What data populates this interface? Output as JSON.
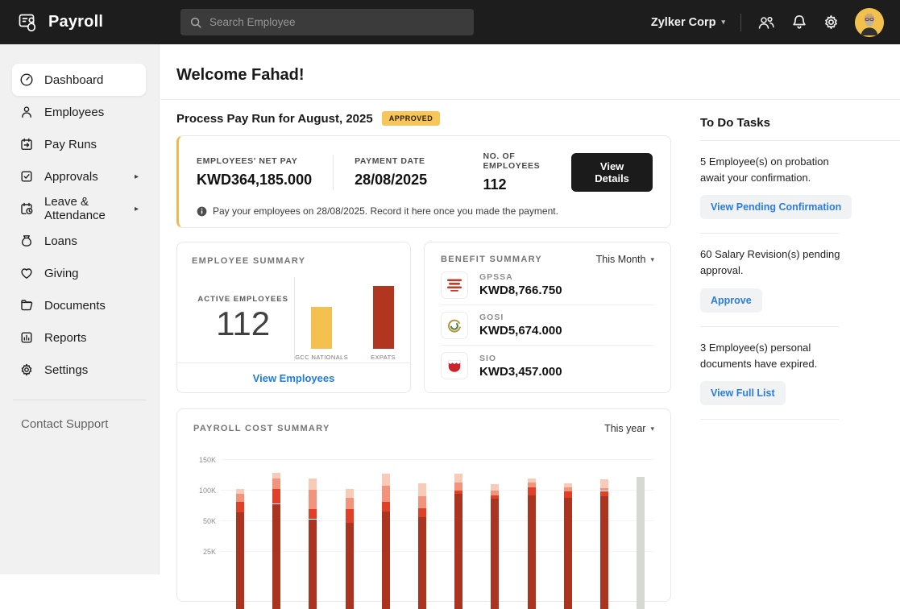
{
  "topbar": {
    "app_name": "Payroll",
    "search_placeholder": "Search Employee",
    "org_name": "Zylker Corp",
    "icons": [
      "users-icon",
      "bell-icon",
      "gear-icon"
    ],
    "avatar": "user-avatar"
  },
  "sidebar": {
    "items": [
      {
        "label": "Dashboard",
        "icon": "dashboard-icon",
        "active": true,
        "has_submenu": false
      },
      {
        "label": "Employees",
        "icon": "employees-icon",
        "active": false,
        "has_submenu": false
      },
      {
        "label": "Pay Runs",
        "icon": "payruns-icon",
        "active": false,
        "has_submenu": false
      },
      {
        "label": "Approvals",
        "icon": "approvals-icon",
        "active": false,
        "has_submenu": true
      },
      {
        "label": "Leave & Attendance",
        "icon": "leave-attendance-icon",
        "active": false,
        "has_submenu": true
      },
      {
        "label": "Loans",
        "icon": "loans-icon",
        "active": false,
        "has_submenu": false
      },
      {
        "label": "Giving",
        "icon": "giving-icon",
        "active": false,
        "has_submenu": false
      },
      {
        "label": "Documents",
        "icon": "documents-icon",
        "active": false,
        "has_submenu": false
      },
      {
        "label": "Reports",
        "icon": "reports-icon",
        "active": false,
        "has_submenu": false
      },
      {
        "label": "Settings",
        "icon": "settings-icon",
        "active": false,
        "has_submenu": false
      }
    ],
    "support_label": "Contact Support"
  },
  "main": {
    "welcome": "Welcome Fahad!",
    "payrun": {
      "title": "Process Pay Run for August, 2025",
      "status_badge": "APPROVED",
      "stats": [
        {
          "label": "EMPLOYEES' NET PAY",
          "value": "KWD364,185.000"
        },
        {
          "label": "PAYMENT DATE",
          "value": "28/08/2025"
        },
        {
          "label": "NO. OF EMPLOYEES",
          "value": "112"
        }
      ],
      "cta": "View Details",
      "note": "Pay your employees on 28/08/2025. Record it here once you made the payment."
    },
    "employee_summary": {
      "title": "EMPLOYEE SUMMARY",
      "active_label": "ACTIVE EMPLOYEES",
      "active_count": "112",
      "link": "View Employees"
    },
    "benefit_summary": {
      "title": "BENEFIT SUMMARY",
      "period": "This Month",
      "rows": [
        {
          "name": "GPSSA",
          "amount": "KWD8,766.750",
          "logo": "gpssa-logo"
        },
        {
          "name": "GOSI",
          "amount": "KWD5,674.000",
          "logo": "gosi-logo"
        },
        {
          "name": "SIO",
          "amount": "KWD3,457.000",
          "logo": "sio-logo"
        }
      ]
    },
    "payroll_cost": {
      "title": "PAYROLL COST SUMMARY",
      "period": "This year"
    }
  },
  "todo": {
    "title": "To Do Tasks",
    "tasks": [
      {
        "text": "5 Employee(s) on probation await your confirmation.",
        "action": "View Pending Confirmation"
      },
      {
        "text": "60 Salary Revision(s) pending approval.",
        "action": "Approve"
      },
      {
        "text": "3 Employee(s) personal documents have expired.",
        "action": "View Full List"
      }
    ]
  },
  "chart_data": [
    {
      "type": "bar",
      "title": "EMPLOYEE SUMMARY",
      "categories": [
        "GCC NATIONALS",
        "EXPATS"
      ],
      "values": [
        45,
        67
      ],
      "colors": [
        "#f4c04f",
        "#b23520"
      ],
      "total_label": "112"
    },
    {
      "type": "bar",
      "stacked": true,
      "title": "PAYROLL COST SUMMARY",
      "period": "This year",
      "categories": [
        "",
        "",
        "",
        "",
        "",
        "",
        "",
        "",
        "",
        "",
        "",
        ""
      ],
      "series": [
        {
          "name": "cost-layer-1",
          "color": "#ab3420",
          "values": [
            63,
            77,
            52,
            48,
            64,
            55,
            93,
            86,
            91,
            87,
            89,
            0
          ]
        },
        {
          "name": "cost-layer-2",
          "color": "#e23f27",
          "values": [
            17,
            24,
            17,
            20,
            16,
            15,
            6,
            5,
            13,
            10,
            9,
            0
          ]
        },
        {
          "name": "cost-layer-3",
          "color": "#f2937b",
          "values": [
            13,
            17,
            31,
            19,
            27,
            20,
            13,
            8,
            8,
            7,
            5,
            0
          ]
        },
        {
          "name": "cost-layer-4",
          "color": "#f8cab8",
          "values": [
            9,
            10,
            19,
            14,
            20,
            20,
            15,
            10,
            6,
            6,
            14,
            0
          ]
        },
        {
          "name": "projected",
          "color": "#d6d9d1",
          "values": [
            0,
            0,
            0,
            0,
            0,
            0,
            0,
            0,
            0,
            0,
            0,
            121
          ]
        }
      ],
      "y_ticks": [
        "150K",
        "100K",
        "50K",
        "25K"
      ],
      "ylim": [
        0,
        150
      ],
      "unit": "K",
      "grid": true,
      "legend": "none"
    }
  ],
  "colors": {
    "topbar_bg": "#1d1d1d",
    "accent_amber": "#f2bf4e",
    "link_blue": "#1e7ce0",
    "button_dark": "#1b1b1b"
  }
}
